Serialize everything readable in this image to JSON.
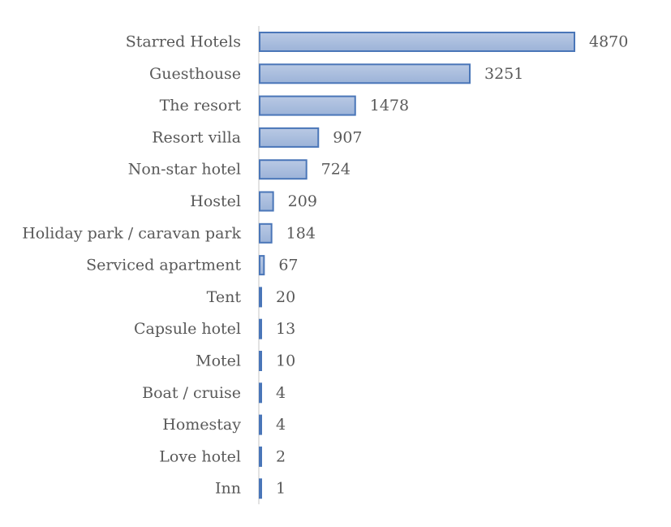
{
  "chart_data": {
    "type": "bar",
    "orientation": "horizontal",
    "title": "",
    "xlabel": "",
    "ylabel": "",
    "categories": [
      "Starred Hotels",
      "Guesthouse",
      "The resort",
      "Resort villa",
      "Non-star hotel",
      "Hostel",
      "Holiday park / caravan park",
      "Serviced apartment",
      "Tent",
      "Capsule hotel",
      "Motel",
      "Boat / cruise",
      "Homestay",
      "Love hotel",
      "Inn"
    ],
    "values": [
      4870,
      3251,
      1478,
      907,
      724,
      209,
      184,
      67,
      20,
      13,
      10,
      4,
      4,
      2,
      1
    ],
    "xlim": [
      0,
      4870
    ],
    "grid": false,
    "legend": "none",
    "data_labels": true,
    "colors": {
      "bar_fill_top": "#b9c9e4",
      "bar_fill_bottom": "#9cb3d8",
      "bar_stroke": "#4a76b8",
      "axis": "#d9d9d9",
      "text": "#595959"
    }
  }
}
